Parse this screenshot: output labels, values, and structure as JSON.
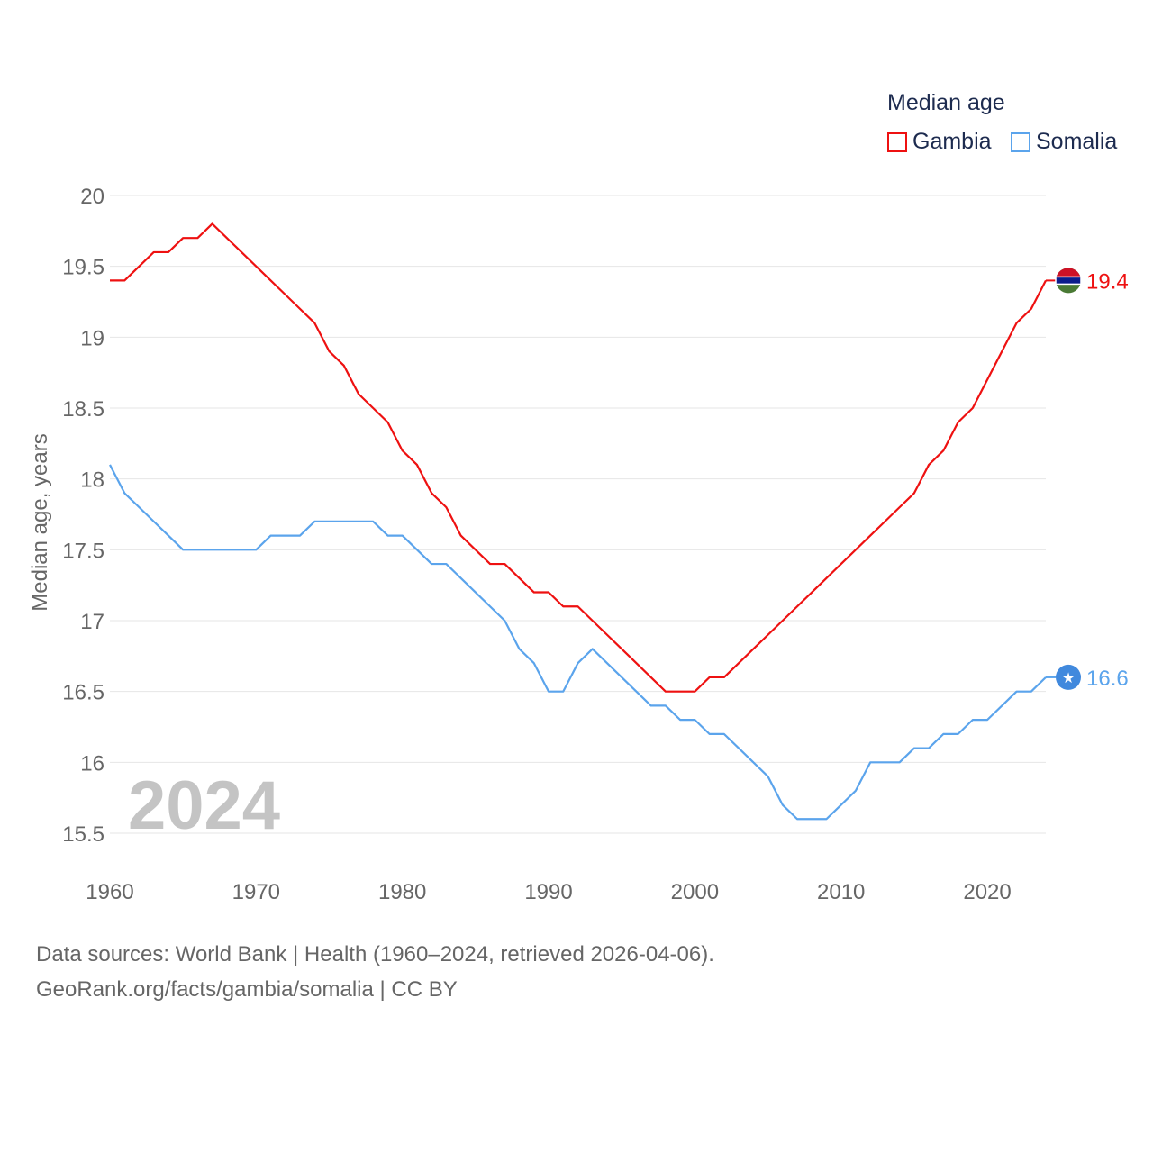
{
  "chart_data": {
    "type": "line",
    "legend_title": "Median age",
    "ylabel": "Median age, years",
    "xlabel": "",
    "ylim": [
      15.5,
      20
    ],
    "xlim": [
      1960,
      2024
    ],
    "yticks": [
      "15.5",
      "16",
      "16.5",
      "17",
      "17.5",
      "18",
      "18.5",
      "19",
      "19.5",
      "20"
    ],
    "xticks": [
      "1960",
      "1970",
      "1980",
      "1990",
      "2000",
      "2010",
      "2020"
    ],
    "year_label": "2024",
    "grid": true,
    "legend_position": "top-right",
    "x": [
      1960,
      1961,
      1962,
      1963,
      1964,
      1965,
      1966,
      1967,
      1968,
      1969,
      1970,
      1971,
      1972,
      1973,
      1974,
      1975,
      1976,
      1977,
      1978,
      1979,
      1980,
      1981,
      1982,
      1983,
      1984,
      1985,
      1986,
      1987,
      1988,
      1989,
      1990,
      1991,
      1992,
      1993,
      1994,
      1995,
      1996,
      1997,
      1998,
      1999,
      2000,
      2001,
      2002,
      2003,
      2004,
      2005,
      2006,
      2007,
      2008,
      2009,
      2010,
      2011,
      2012,
      2013,
      2014,
      2015,
      2016,
      2017,
      2018,
      2019,
      2020,
      2021,
      2022,
      2023,
      2024
    ],
    "series": [
      {
        "name": "Gambia",
        "color": "#ee1111",
        "end_label": "19.4",
        "values": [
          19.4,
          19.4,
          19.5,
          19.6,
          19.6,
          19.7,
          19.7,
          19.8,
          19.7,
          19.6,
          19.5,
          19.4,
          19.3,
          19.2,
          19.1,
          18.9,
          18.8,
          18.6,
          18.5,
          18.4,
          18.2,
          18.1,
          17.9,
          17.8,
          17.6,
          17.5,
          17.4,
          17.4,
          17.3,
          17.2,
          17.2,
          17.1,
          17.1,
          17.0,
          16.9,
          16.8,
          16.7,
          16.6,
          16.5,
          16.5,
          16.5,
          16.6,
          16.6,
          16.7,
          16.8,
          16.9,
          17.0,
          17.1,
          17.2,
          17.3,
          17.4,
          17.5,
          17.6,
          17.7,
          17.8,
          17.9,
          18.1,
          18.2,
          18.4,
          18.5,
          18.7,
          18.9,
          19.1,
          19.2,
          19.4
        ]
      },
      {
        "name": "Somalia",
        "color": "#5ba4ec",
        "end_label": "16.6",
        "values": [
          18.1,
          17.9,
          17.8,
          17.7,
          17.6,
          17.5,
          17.5,
          17.5,
          17.5,
          17.5,
          17.5,
          17.6,
          17.6,
          17.6,
          17.7,
          17.7,
          17.7,
          17.7,
          17.7,
          17.6,
          17.6,
          17.5,
          17.4,
          17.4,
          17.3,
          17.2,
          17.1,
          17.0,
          16.8,
          16.7,
          16.5,
          16.5,
          16.7,
          16.8,
          16.7,
          16.6,
          16.5,
          16.4,
          16.4,
          16.3,
          16.3,
          16.2,
          16.2,
          16.1,
          16.0,
          15.9,
          15.7,
          15.6,
          15.6,
          15.6,
          15.7,
          15.8,
          16.0,
          16.0,
          16.0,
          16.1,
          16.1,
          16.2,
          16.2,
          16.3,
          16.3,
          16.4,
          16.5,
          16.5,
          16.6
        ]
      }
    ]
  },
  "footer": {
    "line1": "Data sources: World Bank | Health (1960–2024, retrieved 2026-04-06).",
    "line2": "GeoRank.org/facts/gambia/somalia | CC BY"
  }
}
